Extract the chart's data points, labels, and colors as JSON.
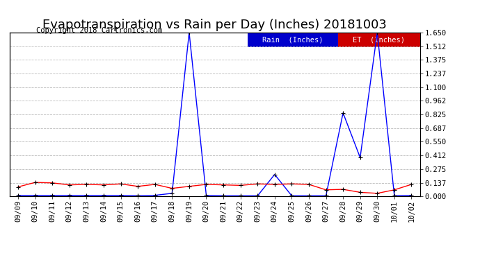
{
  "title": "Evapotranspiration vs Rain per Day (Inches) 20181003",
  "copyright": "Copyright 2018 Cartronics.com",
  "x_labels": [
    "09/09",
    "09/10",
    "09/11",
    "09/12",
    "09/13",
    "09/14",
    "09/15",
    "09/16",
    "09/17",
    "09/18",
    "09/19",
    "09/20",
    "09/21",
    "09/22",
    "09/23",
    "09/24",
    "09/25",
    "09/26",
    "09/27",
    "09/28",
    "09/29",
    "09/30",
    "10/01",
    "10/02"
  ],
  "rain_inches": [
    0.01,
    0.01,
    0.01,
    0.01,
    0.01,
    0.01,
    0.01,
    0.005,
    0.01,
    0.03,
    1.65,
    0.01,
    0.005,
    0.005,
    0.005,
    0.22,
    0.005,
    0.005,
    0.005,
    0.84,
    0.39,
    1.65,
    0.005,
    0.01
  ],
  "et_inches": [
    0.095,
    0.14,
    0.135,
    0.115,
    0.12,
    0.115,
    0.125,
    0.1,
    0.12,
    0.08,
    0.1,
    0.12,
    0.115,
    0.11,
    0.125,
    0.12,
    0.125,
    0.12,
    0.065,
    0.07,
    0.04,
    0.03,
    0.065,
    0.12
  ],
  "ylim": [
    0.0,
    1.65
  ],
  "yticks": [
    0.0,
    0.137,
    0.275,
    0.412,
    0.55,
    0.687,
    0.825,
    0.962,
    1.1,
    1.237,
    1.375,
    1.512,
    1.65
  ],
  "rain_color": "#0000ff",
  "et_color": "#ff0000",
  "marker_color": "#000000",
  "bg_color": "#ffffff",
  "grid_color": "#bbbbbb",
  "legend_rain_bg": "#0000cc",
  "legend_et_bg": "#cc0000",
  "legend_rain_label": "Rain  (Inches)",
  "legend_et_label": "ET  (Inches)",
  "title_fontsize": 13,
  "copyright_fontsize": 7.5,
  "tick_fontsize": 7.5,
  "legend_fontsize": 7.5
}
